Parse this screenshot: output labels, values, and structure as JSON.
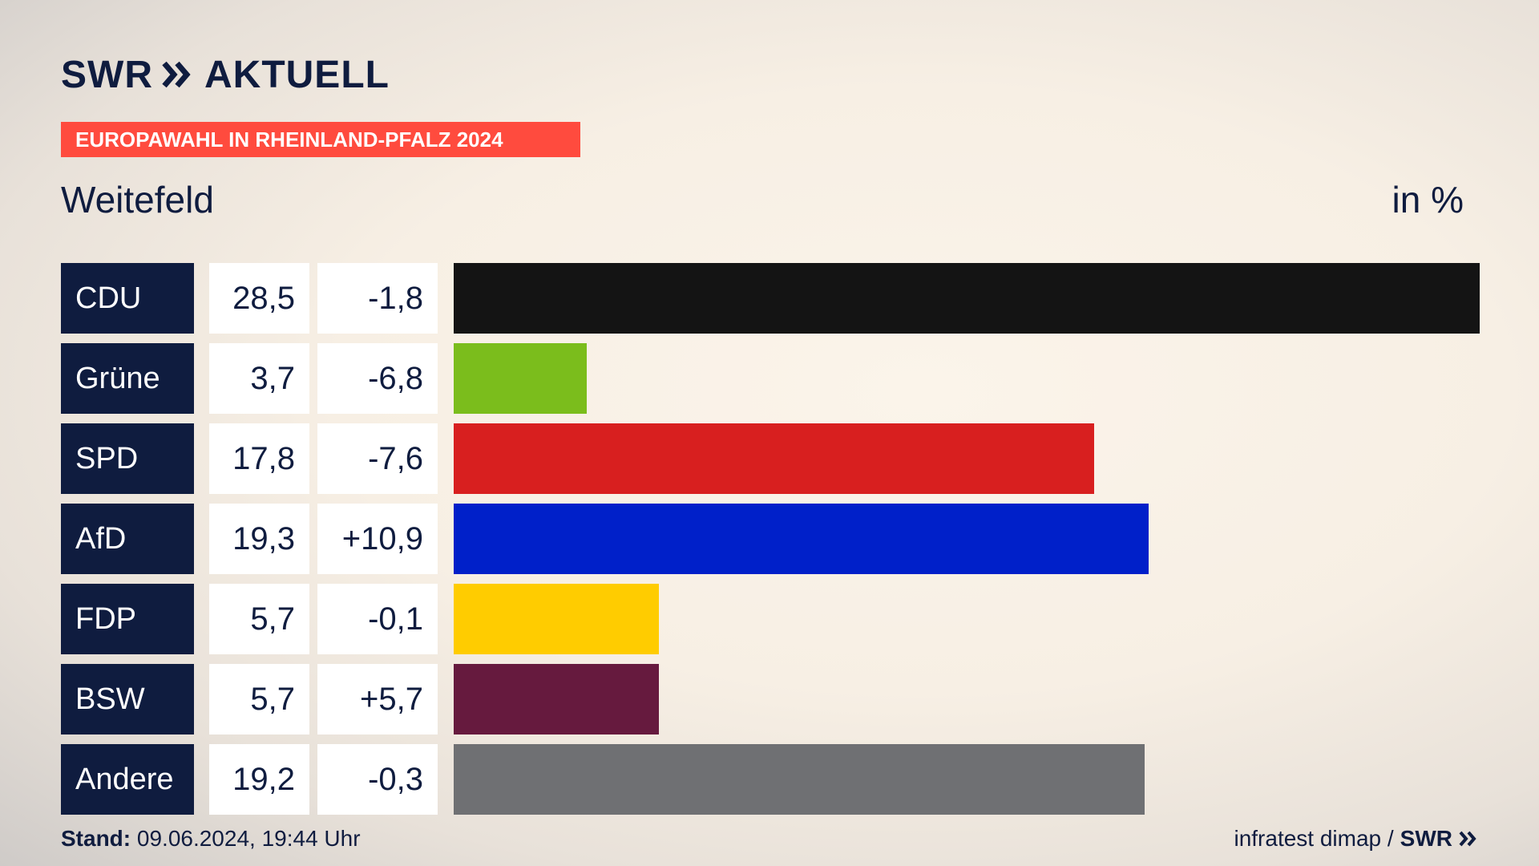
{
  "brand": {
    "name_left": "SWR",
    "name_right": "AKTUELL",
    "icon": "double-chevron-icon"
  },
  "badge": {
    "text": "EUROPAWAHL IN RHEINLAND-PFALZ 2024"
  },
  "place": "Weitefeld",
  "unit": "in %",
  "chart_data": {
    "type": "bar",
    "orientation": "horizontal",
    "categories": [
      "CDU",
      "Grüne",
      "SPD",
      "AfD",
      "FDP",
      "BSW",
      "Andere"
    ],
    "values": [
      28.5,
      3.7,
      17.8,
      19.3,
      5.7,
      5.7,
      19.2
    ],
    "value_labels": [
      "28,5",
      "3,7",
      "17,8",
      "19,3",
      "5,7",
      "5,7",
      "19,2"
    ],
    "diff_labels": [
      "-1,8",
      "-6,8",
      "-7,6",
      "+10,9",
      "-0,1",
      "+5,7",
      "-0,3"
    ],
    "diffs": [
      -1.8,
      -6.8,
      -7.6,
      10.9,
      -0.1,
      5.7,
      -0.3
    ],
    "colors": [
      "#141414",
      "#7bbd1c",
      "#d81f1f",
      "#0020c9",
      "#ffcc00",
      "#661a3e",
      "#6f7073"
    ],
    "xlim": [
      0,
      28.5
    ],
    "grid": false
  },
  "footer": {
    "stand_label": "Stand:",
    "stand_value": "09.06.2024, 19:44 Uhr",
    "source": "infratest dimap /",
    "source_brand": "SWR"
  }
}
